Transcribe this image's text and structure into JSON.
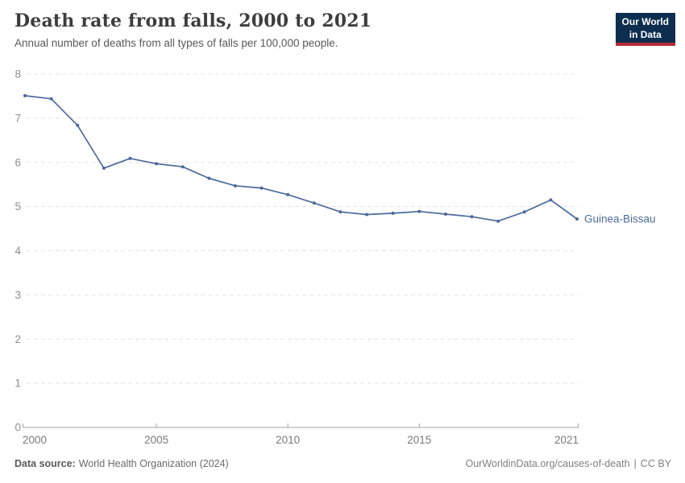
{
  "header": {
    "title": "Death rate from falls, 2000 to 2021",
    "subtitle": "Annual number of deaths from all types of falls per 100,000 people.",
    "logo": {
      "line1": "Our World",
      "line2": "in Data"
    }
  },
  "chart_data": {
    "type": "line",
    "title": "Death rate from falls, 2000 to 2021",
    "ylabel": "",
    "xlabel": "",
    "xlim": [
      2000,
      2021
    ],
    "ylim": [
      0,
      8
    ],
    "xticks": [
      2000,
      2005,
      2010,
      2015,
      2021
    ],
    "yticks": [
      0,
      1,
      2,
      3,
      4,
      5,
      6,
      7,
      8
    ],
    "grid": "horizontal-dashed",
    "legend_position": "end-of-line-label",
    "series": [
      {
        "name": "Guinea-Bissau",
        "color": "#4c6a9c",
        "x": [
          2000,
          2001,
          2002,
          2003,
          2004,
          2005,
          2006,
          2007,
          2008,
          2009,
          2010,
          2011,
          2012,
          2013,
          2014,
          2015,
          2016,
          2017,
          2018,
          2019,
          2020,
          2021
        ],
        "values": [
          7.51,
          7.44,
          6.84,
          5.87,
          6.09,
          5.97,
          5.9,
          5.64,
          5.47,
          5.42,
          5.27,
          5.08,
          4.88,
          4.82,
          4.85,
          4.89,
          4.83,
          4.77,
          4.67,
          4.88,
          5.15,
          4.72
        ]
      }
    ]
  },
  "colors": {
    "accent_line": "#4c6a9c",
    "logo_navy": "#0d2e4e",
    "logo_red": "#b32d38",
    "gridline": "#e3e3e3",
    "axis": "#a3a3a3"
  },
  "footer": {
    "datasource_label": "Data source:",
    "datasource": "World Health Organization (2024)",
    "link": "OurWorldinData.org/causes-of-death",
    "divider": "|",
    "license": "CC BY"
  }
}
